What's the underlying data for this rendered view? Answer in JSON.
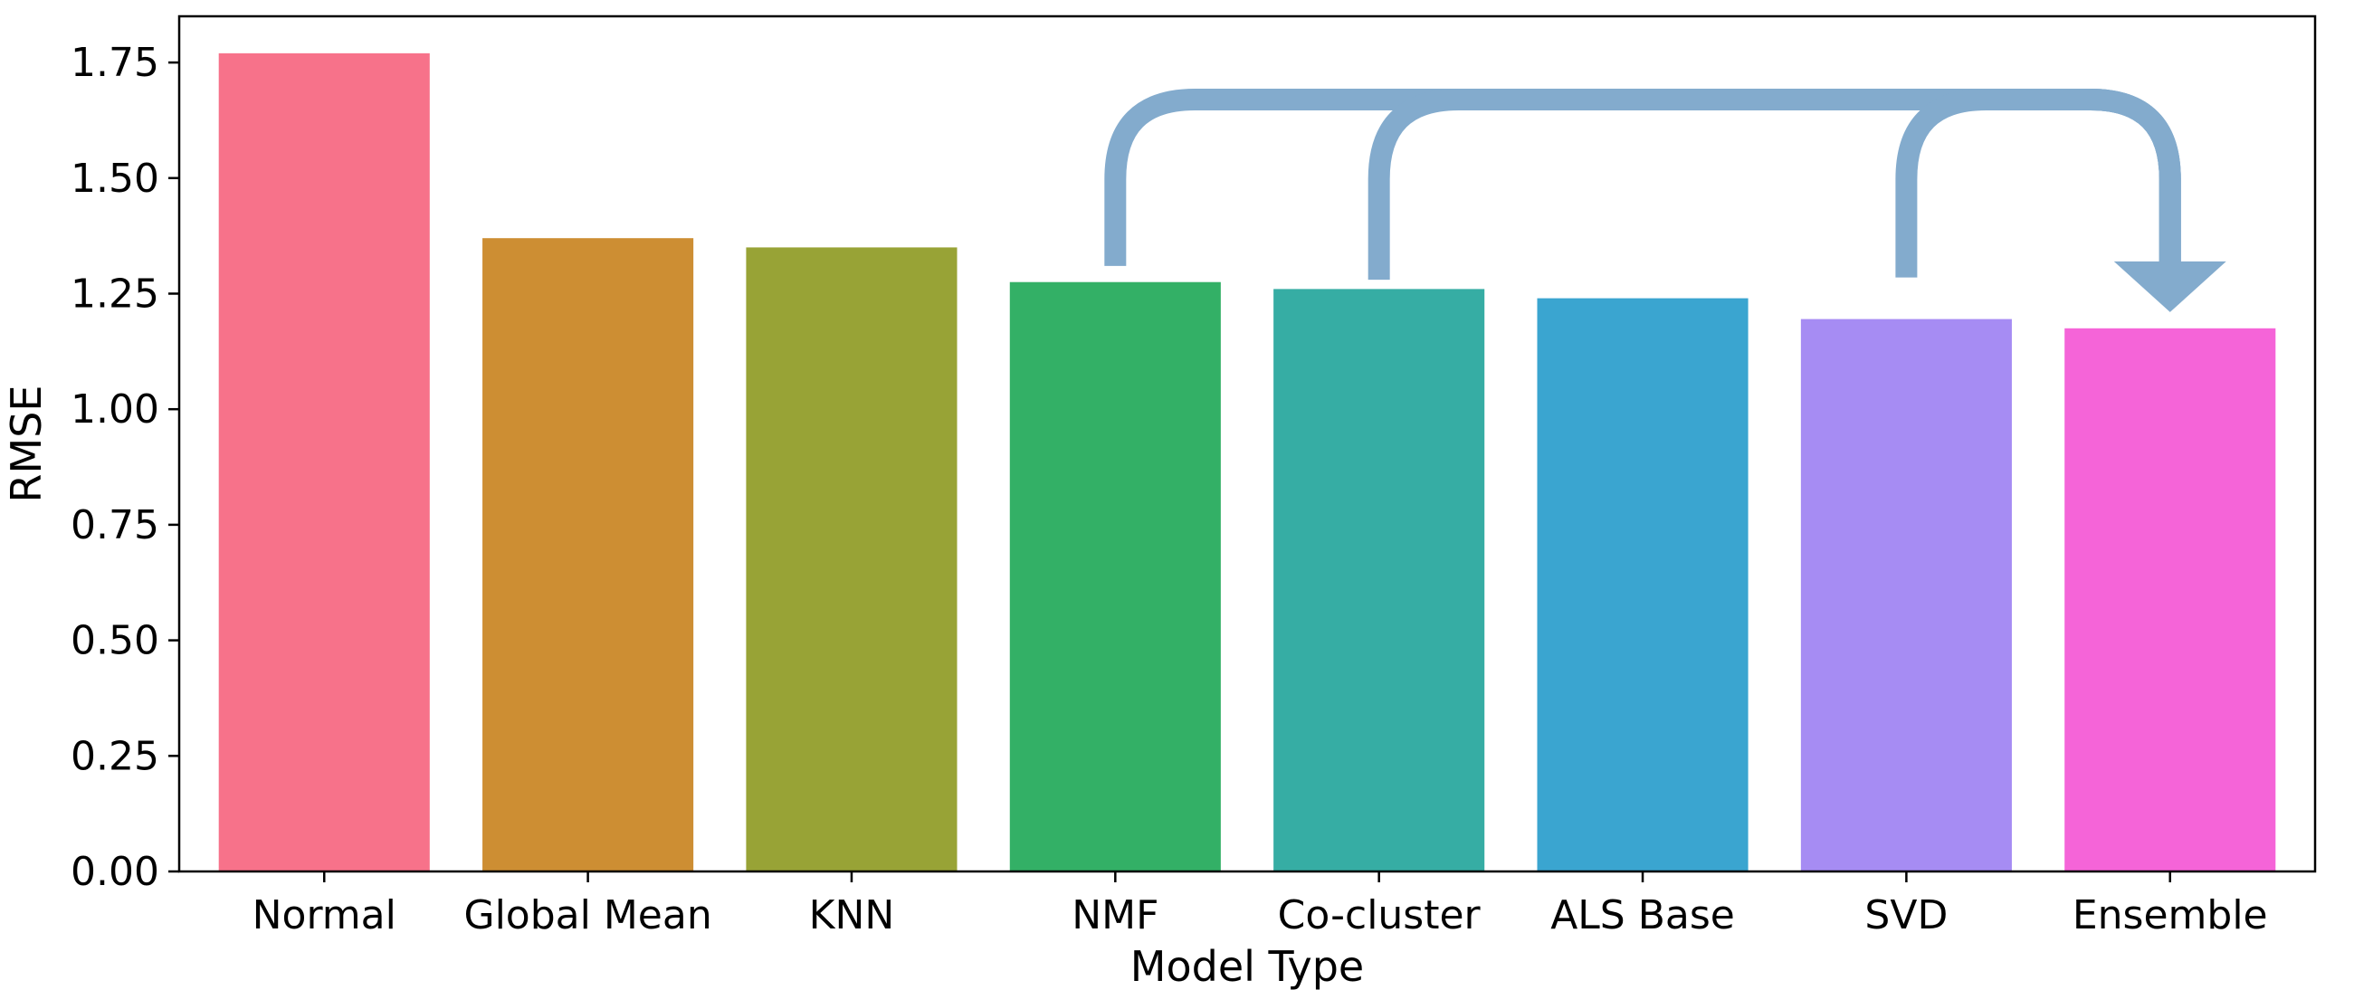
{
  "chart_data": {
    "type": "bar",
    "title": "",
    "xlabel": "Model Type",
    "ylabel": "RMSE",
    "categories": [
      "Normal",
      "Global Mean",
      "KNN",
      "NMF",
      "Co-cluster",
      "ALS Base",
      "SVD",
      "Ensemble"
    ],
    "values": [
      1.77,
      1.37,
      1.35,
      1.275,
      1.26,
      1.24,
      1.195,
      1.175
    ],
    "colors": [
      "#f7728a",
      "#cd8e33",
      "#98a336",
      "#33b066",
      "#36ada4",
      "#3aa5d0",
      "#a68cf3",
      "#f564d8"
    ],
    "ylim": [
      0,
      1.85
    ],
    "yticks": [
      0.0,
      0.25,
      0.5,
      0.75,
      1.0,
      1.25,
      1.5,
      1.75
    ],
    "ytick_labels": [
      "0.00",
      "0.25",
      "0.50",
      "0.75",
      "1.00",
      "1.25",
      "1.50",
      "1.75"
    ],
    "grid": false,
    "annotations": {
      "arrow_color": "#83abcd",
      "arrow_sources": [
        "NMF",
        "Co-cluster",
        "SVD"
      ],
      "arrow_target": "Ensemble",
      "arrow_level": 1.67,
      "source_start_levels": [
        1.31,
        1.28,
        1.285
      ],
      "arrowhead_tip_level": 1.21
    }
  }
}
